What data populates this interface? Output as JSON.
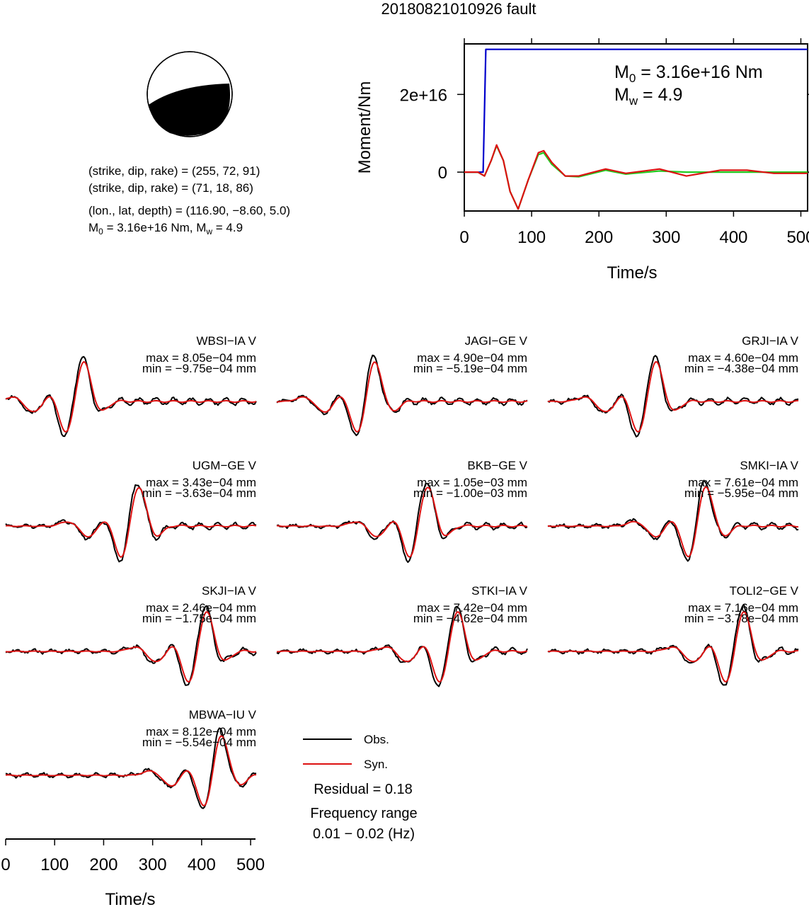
{
  "title": "20180821010926 fault",
  "mechanism": {
    "plane1": "(strike, dip, rake) = (255, 72, 91)",
    "plane2": "(strike, dip, rake) = (71, 18, 86)",
    "location": "(lon., lat, depth) = (116.90, −8.60, 5.0)",
    "m0_label": "M",
    "m0_sub": "0",
    "m0_value": " = 3.16e+16 Nm, M",
    "mw_sub": "w",
    "mw_value": " = 4.9"
  },
  "stf_chart": {
    "type": "line",
    "ylabel": "Moment/Nm",
    "xlabel": "Time/s",
    "xlim": [
      0,
      510
    ],
    "ylim": [
      -1e+16,
      3.3e+16
    ],
    "xticks": [
      "0",
      "100",
      "200",
      "300",
      "400",
      "500"
    ],
    "yticks": [
      {
        "v": 2e+16,
        "label": "2e+16"
      },
      {
        "v": 0,
        "label": "0"
      }
    ],
    "annotation": {
      "m0_sym": "M",
      "m0_sub": "0",
      "m0_text": " = 3.16e+16 Nm",
      "mw_sym": "M",
      "mw_sub": "w",
      "mw_text": " = 4.9"
    },
    "colors": {
      "cumulative": "#0000cc",
      "rate_a": "#22cc22",
      "rate_b": "#dd1111"
    }
  },
  "chart_data": {
    "type": "line",
    "title": "20180821010926 fault",
    "xlabel": "Time/s",
    "xlim": [
      0,
      510
    ],
    "stf_series": [
      {
        "x": [
          0,
          28,
          32,
          510
        ],
        "y": [
          0,
          0,
          3.16e+16,
          3.16e+16
        ]
      },
      {
        "x": [
          0,
          20,
          30,
          40,
          48,
          58,
          68,
          80,
          95,
          110,
          118,
          130,
          150,
          170,
          210,
          240,
          290,
          330,
          380,
          420,
          460,
          510
        ],
        "y": [
          0,
          0,
          -1000000000000000.0,
          3000000000000000.0,
          6800000000000000.0,
          3000000000000000.0,
          -5000000000000000.0,
          -9500000000000000.0,
          -2000000000000000.0,
          4500000000000000.0,
          5000000000000000.0,
          2000000000000000.0,
          -1000000000000000.0,
          -1200000000000000.0,
          500000000000000.0,
          -500000000000000.0,
          300000000000000.0,
          0.0,
          0.0,
          0.0,
          0.0,
          0.0
        ]
      },
      {
        "x": [
          0,
          20,
          30,
          40,
          48,
          58,
          68,
          80,
          95,
          110,
          118,
          130,
          150,
          170,
          210,
          240,
          290,
          330,
          380,
          420,
          460,
          510
        ],
        "y": [
          0,
          0,
          -1000000000000000.0,
          3000000000000000.0,
          7000000000000000.0,
          3000000000000000.0,
          -5000000000000000.0,
          -9500000000000000.0,
          -2000000000000000.0,
          5000000000000000.0,
          5500000000000000.0,
          2500000000000000.0,
          -1000000000000000.0,
          -1000000000000000.0,
          800000000000000.0,
          -300000000000000.0,
          800000000000000.0,
          -1000000000000000.0,
          500000000000000.0,
          500000000000000.0,
          -300000000000000.0,
          -300000000000000.0
        ]
      }
    ],
    "stations": [
      {
        "name": "WBSI−IA V",
        "max": "max = 8.05e−04 mm",
        "min": "min = −9.75e−04 mm"
      },
      {
        "name": "JAGI−GE V",
        "max": "max = 4.90e−04 mm",
        "min": "min = −5.19e−04 mm"
      },
      {
        "name": "GRJI−IA V",
        "max": "max = 4.60e−04 mm",
        "min": "min = −4.38e−04 mm"
      },
      {
        "name": "UGM−GE V",
        "max": "max = 3.43e−04 mm",
        "min": "min = −3.63e−04 mm"
      },
      {
        "name": "BKB−GE V",
        "max": "max = 1.05e−03 mm",
        "min": "min = −1.00e−03 mm"
      },
      {
        "name": "SMKI−IA V",
        "max": "max = 7.61e−04 mm",
        "min": "min = −5.95e−04 mm"
      },
      {
        "name": "SKJI−IA V",
        "max": "max = 2.46e−04 mm",
        "min": "min = −1.75e−04 mm"
      },
      {
        "name": "STKI−IA V",
        "max": "max = 7.42e−04 mm",
        "min": "min = −4.62e−04 mm"
      },
      {
        "name": "TOLI2−GE V",
        "max": "max = 7.16e−04 mm",
        "min": "min = −3.78e−04 mm"
      },
      {
        "name": "MBWA−IU V",
        "max": "max = 8.12e−04 mm",
        "min": "min = −5.54e−04 mm"
      }
    ],
    "waveform_xticks": [
      "0",
      "100",
      "200",
      "300",
      "400",
      "500"
    ],
    "waveform_xlabel": "Time/s"
  },
  "legend": {
    "obs": "Obs.",
    "syn": "Syn.",
    "obs_color": "#000000",
    "syn_color": "#dd1111",
    "residual": "Residual = 0.18",
    "freq_title": "Frequency range",
    "freq_range": "0.01 − 0.02 (Hz)"
  }
}
